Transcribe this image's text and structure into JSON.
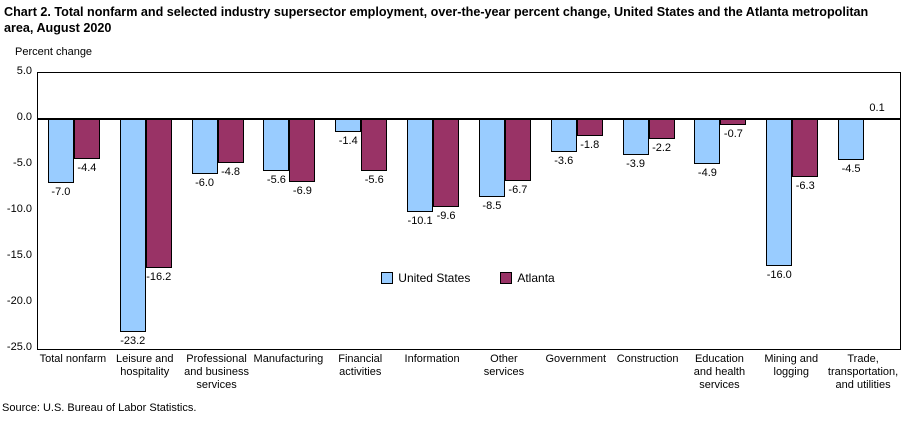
{
  "header": {
    "title": "Chart 2. Total nonfarm and selected industry supersector employment, over-the-year percent change, United States and the Atlanta metropolitan area, August 2020"
  },
  "axis": {
    "y_title": "Percent change"
  },
  "footer": {
    "source": "Source: U.S. Bureau of Labor Statistics."
  },
  "colors": {
    "us_bar": "#99CCFF",
    "atlanta_bar": "#993366",
    "bar_border": "#000000",
    "axis_line": "#000000"
  },
  "chart_data": {
    "type": "bar",
    "title": "Chart 2. Total nonfarm and selected industry supersector employment, over-the-year percent change, United States and the Atlanta metropolitan area, August 2020",
    "ylabel": "Percent change",
    "ylim": [
      -25.0,
      5.0
    ],
    "yticks": [
      5.0,
      0.0,
      -5.0,
      -10.0,
      -15.0,
      -20.0,
      -25.0
    ],
    "grid": false,
    "legend_position": "inside-bottom-center",
    "categories": [
      "Total nonfarm",
      "Leisure and hospitality",
      "Professional and business services",
      "Manufacturing",
      "Financial activities",
      "Information",
      "Other services",
      "Government",
      "Construction",
      "Education and health services",
      "Mining and logging",
      "Trade, transportation, and utilities"
    ],
    "category_lines": [
      [
        "Total nonfarm"
      ],
      [
        "Leisure and",
        "hospitality"
      ],
      [
        "Professional",
        "and business",
        "services"
      ],
      [
        "Manufacturing"
      ],
      [
        "Financial",
        "activities"
      ],
      [
        "Information"
      ],
      [
        "Other",
        "services"
      ],
      [
        "Government"
      ],
      [
        "Construction"
      ],
      [
        "Education",
        "and health",
        "services"
      ],
      [
        "Mining and",
        "logging"
      ],
      [
        "Trade,",
        "transportation,",
        "and utilities"
      ]
    ],
    "series": [
      {
        "name": "United States",
        "color": "#99CCFF",
        "values": [
          -7.0,
          -23.2,
          -6.0,
          -5.6,
          -1.4,
          -10.1,
          -8.5,
          -3.6,
          -3.9,
          -4.9,
          -16.0,
          -4.5
        ]
      },
      {
        "name": "Atlanta",
        "color": "#993366",
        "values": [
          -4.4,
          -16.2,
          -4.8,
          -6.9,
          -5.6,
          -9.6,
          -6.7,
          -1.8,
          -2.2,
          -0.7,
          -6.3,
          0.1
        ]
      }
    ]
  }
}
